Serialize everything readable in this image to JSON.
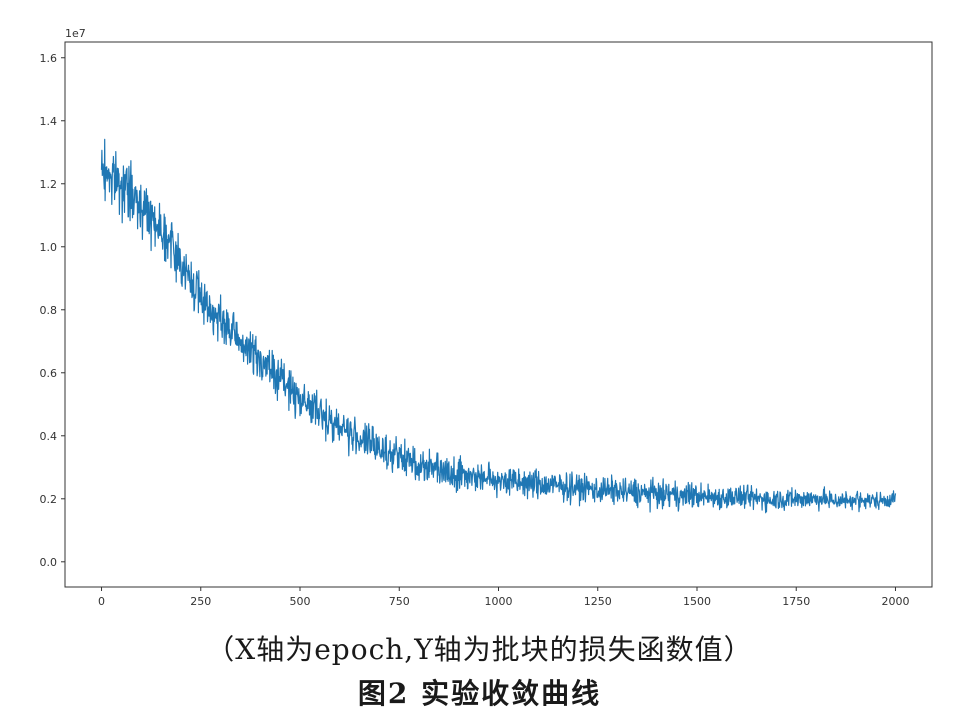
{
  "chart_data": {
    "type": "line",
    "title": "",
    "xlabel": "",
    "ylabel": "",
    "offset_text": "1e7",
    "xlim": [
      -92,
      2092
    ],
    "ylim": [
      -800000.0,
      16500000.0
    ],
    "xticks": [
      0,
      250,
      500,
      750,
      1000,
      1250,
      1500,
      1750,
      2000
    ],
    "xtick_labels": [
      "0",
      "250",
      "500",
      "750",
      "1000",
      "1250",
      "1500",
      "1750",
      "2000"
    ],
    "yticks": [
      0,
      2000000,
      4000000,
      6000000,
      8000000,
      10000000,
      12000000,
      14000000,
      16000000
    ],
    "ytick_labels": [
      "0.0",
      "0.2",
      "0.4",
      "0.6",
      "0.8",
      "1.0",
      "1.2",
      "1.4",
      "1.6"
    ],
    "grid": false,
    "line_color": "#1f77b4",
    "series": [
      {
        "x": [
          0,
          20,
          40,
          60,
          80,
          100,
          125,
          150,
          175,
          200,
          225,
          250,
          275,
          300,
          325,
          350,
          375,
          400,
          425,
          450,
          475,
          500,
          525,
          550,
          575,
          600,
          625,
          650,
          675,
          700,
          725,
          750,
          775,
          800,
          850,
          900,
          950,
          1000,
          1050,
          1100,
          1150,
          1200,
          1250,
          1300,
          1350,
          1400,
          1450,
          1500,
          1550,
          1600,
          1650,
          1700,
          1750,
          1800,
          1850,
          1900,
          1950,
          2000
        ],
        "values": [
          12500000,
          12300000,
          12100000,
          11800000,
          11600000,
          11300000,
          11000000,
          10600000,
          10100000,
          9500000,
          8900000,
          8400000,
          8000000,
          7600000,
          7300000,
          7000000,
          6700000,
          6400000,
          6100000,
          5800000,
          5500000,
          5200000,
          4950000,
          4700000,
          4500000,
          4300000,
          4100000,
          3900000,
          3750000,
          3600000,
          3450000,
          3300000,
          3200000,
          3100000,
          2950000,
          2800000,
          2700000,
          2600000,
          2500000,
          2450000,
          2400000,
          2350000,
          2300000,
          2250000,
          2200000,
          2150000,
          2100000,
          2100000,
          2050000,
          2050000,
          2000000,
          2000000,
          2000000,
          2000000,
          1950000,
          1950000,
          1950000,
          2000000
        ],
        "noise": [
          1500000,
          1400000,
          1350000,
          1300000,
          1250000,
          1200000,
          1200000,
          1150000,
          1100000,
          1100000,
          1100000,
          1050000,
          1000000,
          1000000,
          1000000,
          1000000,
          950000,
          950000,
          900000,
          900000,
          900000,
          900000,
          900000,
          900000,
          850000,
          850000,
          850000,
          850000,
          850000,
          800000,
          800000,
          800000,
          800000,
          800000,
          750000,
          750000,
          750000,
          700000,
          700000,
          700000,
          650000,
          650000,
          650000,
          650000,
          650000,
          600000,
          600000,
          600000,
          550000,
          550000,
          550000,
          500000,
          500000,
          450000,
          450000,
          400000,
          400000,
          400000
        ]
      }
    ]
  },
  "caption": {
    "note": "（X轴为epoch,Y轴为批块的损失函数值）",
    "title": "图2  实验收敛曲线"
  }
}
